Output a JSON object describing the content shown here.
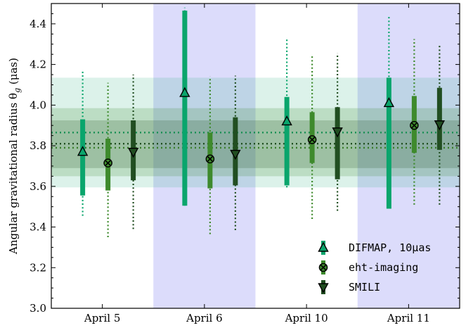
{
  "chart_data": {
    "type": "scatter",
    "title": "",
    "xlabel": "",
    "ylabel": "Angular gravitational radius θ",
    "ylabel_sub": "g",
    "ylabel_unit": "(μas)",
    "ylim": [
      3.0,
      4.5
    ],
    "yticks": [
      "3.0",
      "3.2",
      "3.4",
      "3.6",
      "3.8",
      "4.0",
      "4.2",
      "4.4"
    ],
    "categories": [
      "April 5",
      "April 6",
      "April 10",
      "April 11"
    ],
    "shaded_categories": [
      "April 6",
      "April 11"
    ],
    "colors": {
      "day_shade": "#dcdcfb",
      "difmap": "#0aa56c",
      "ehtim": "#3e8a2c",
      "smili": "#214e21"
    },
    "bands": [
      {
        "series": "DIFMAP, 10μas",
        "low": 3.595,
        "high": 4.135,
        "mean": 3.865
      },
      {
        "series": "eht-imaging",
        "low": 3.65,
        "high": 3.985,
        "mean": 3.79
      },
      {
        "series": "SMILI",
        "low": 3.69,
        "high": 3.925,
        "mean": 3.81
      }
    ],
    "series": [
      {
        "name": "DIFMAP, 10μas",
        "marker": "triangle-up",
        "values": [
          3.77,
          4.06,
          3.92,
          4.01
        ],
        "err_low": [
          3.555,
          3.505,
          3.605,
          3.49
        ],
        "err_high": [
          3.93,
          4.465,
          4.04,
          4.135
        ],
        "err2_low": [
          3.455,
          3.505,
          3.595,
          3.49
        ],
        "err2_high": [
          4.165,
          4.48,
          4.325,
          4.435
        ]
      },
      {
        "name": "eht-imaging",
        "marker": "x-circle",
        "values": [
          3.715,
          3.735,
          3.83,
          3.9
        ],
        "err_low": [
          3.58,
          3.59,
          3.715,
          3.765
        ],
        "err_high": [
          3.835,
          3.865,
          3.965,
          4.045
        ],
        "err2_low": [
          3.35,
          3.365,
          3.44,
          3.51
        ],
        "err2_high": [
          4.11,
          4.14,
          4.24,
          4.325
        ]
      },
      {
        "name": "SMILI",
        "marker": "triangle-down",
        "values": [
          3.77,
          3.76,
          3.87,
          3.905
        ],
        "err_low": [
          3.63,
          3.605,
          3.635,
          3.78
        ],
        "err_high": [
          3.925,
          3.94,
          3.99,
          4.085
        ],
        "err2_low": [
          3.39,
          3.385,
          3.48,
          3.51
        ],
        "err2_high": [
          4.15,
          4.145,
          4.255,
          4.3
        ]
      }
    ],
    "legend": {
      "placement": "bottom-right",
      "entries": [
        "DIFMAP, 10μas",
        "eht-imaging",
        "SMILI"
      ]
    }
  }
}
